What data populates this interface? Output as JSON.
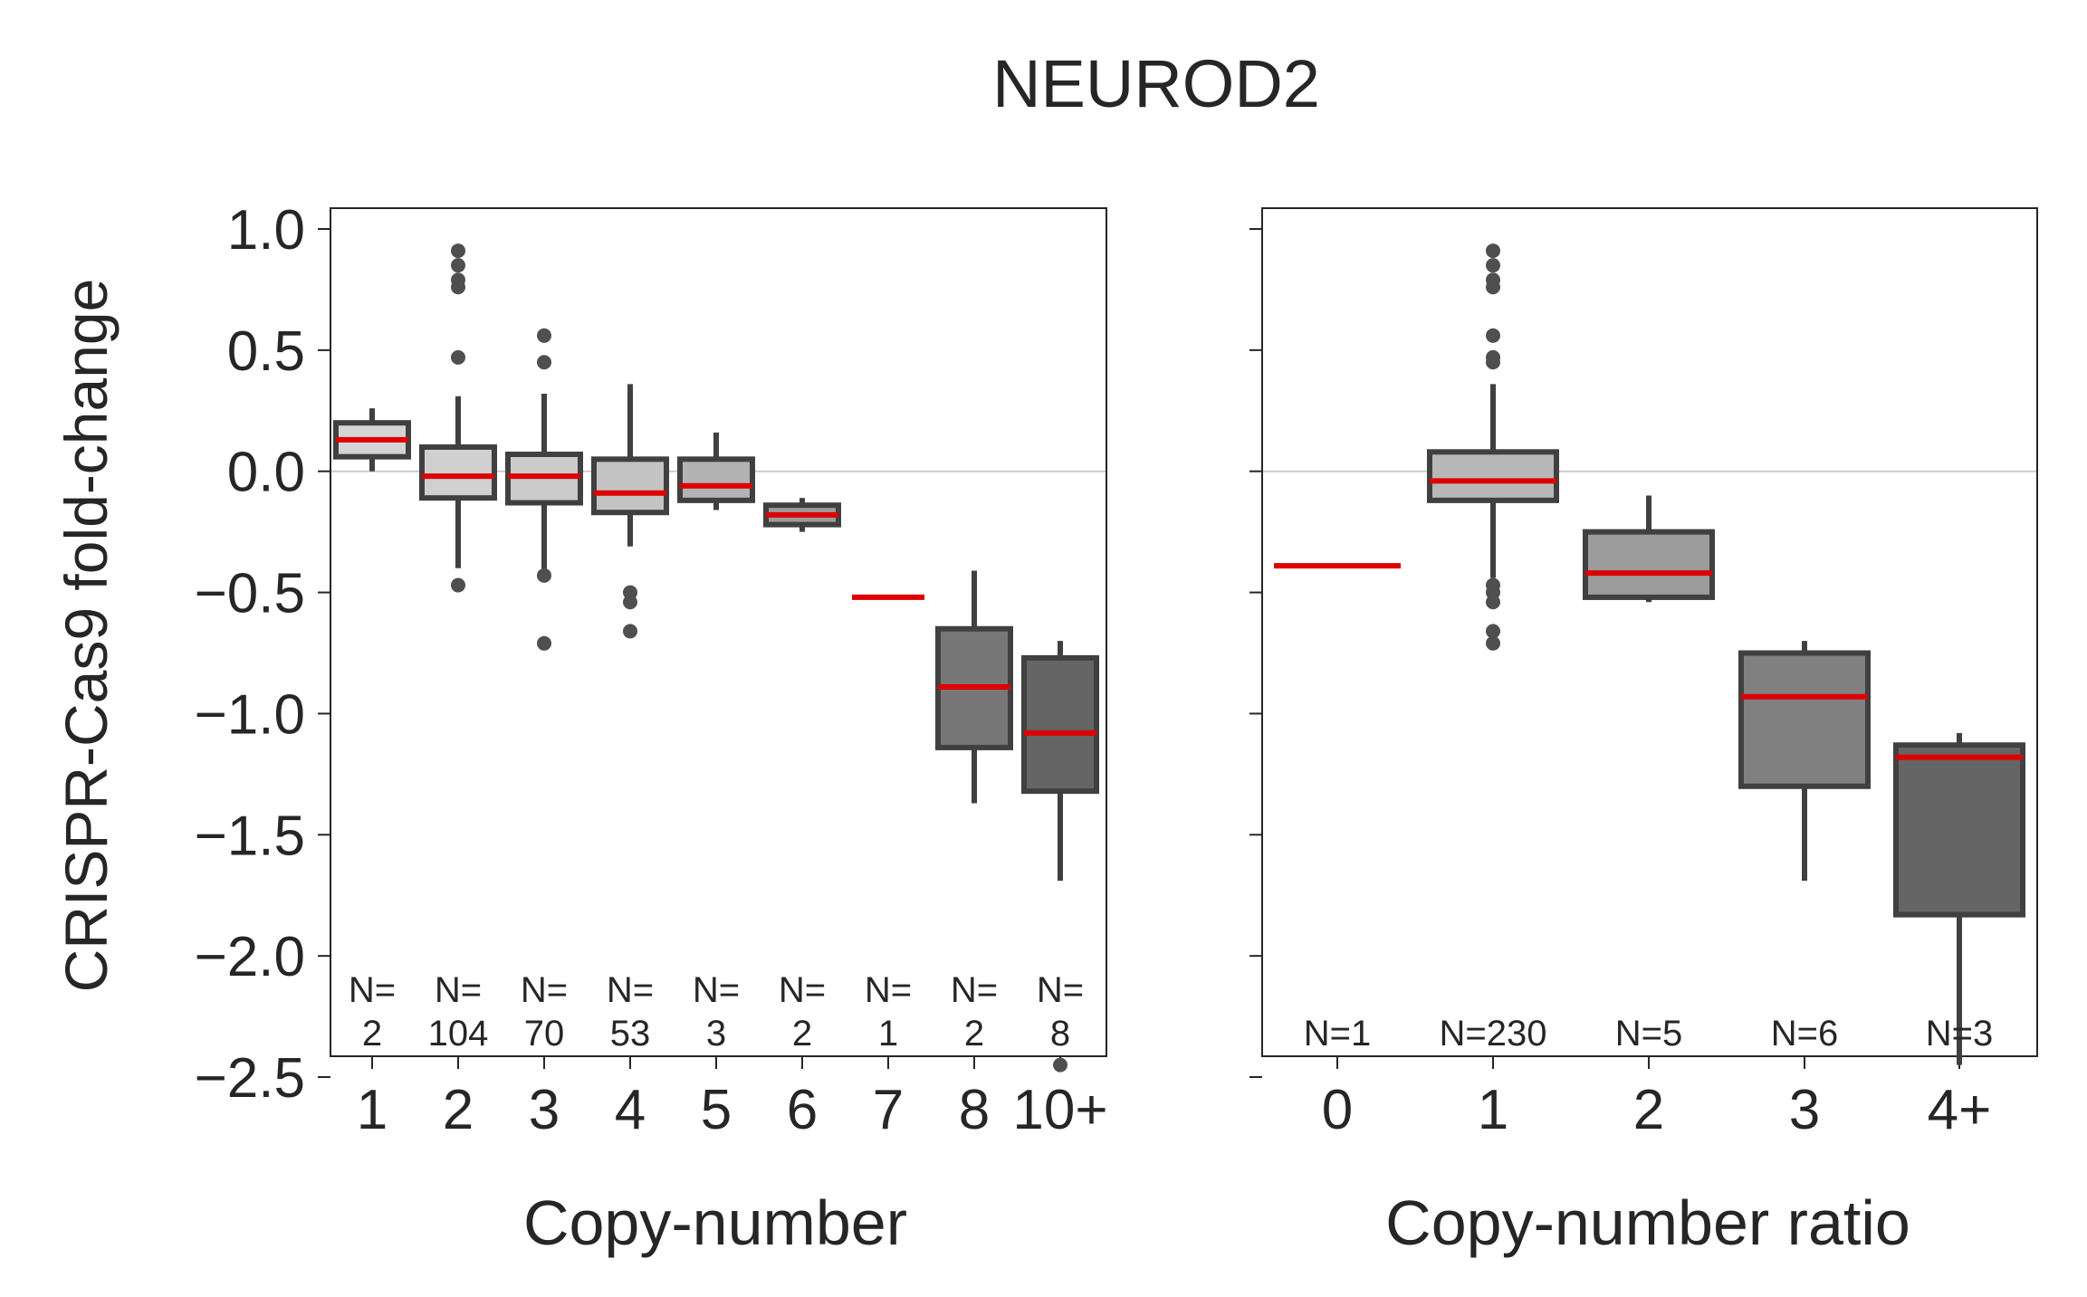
{
  "title": "NEUROD2",
  "colors": {
    "median": "#dd0000",
    "box_edge": "#404040",
    "zero_line": "#cccccc",
    "axis": "#262626",
    "outlier": "#4f4f4f"
  },
  "chart_data": [
    {
      "type": "box",
      "xlabel": "Copy-number",
      "ylabel": "CRISPR-Cas9 fold-change",
      "ylim": [
        -2.5,
        1.0
      ],
      "yticks": [
        1.0,
        0.5,
        0.0,
        -0.5,
        -1.0,
        -1.5,
        -2.0,
        -2.5
      ],
      "ytick_labels": [
        "1.0",
        "0.5",
        "0.0",
        "−0.5",
        "−1.0",
        "−1.5",
        "−2.0",
        "−2.5"
      ],
      "zero_line": true,
      "categories": [
        "1",
        "2",
        "3",
        "4",
        "5",
        "6",
        "7",
        "8",
        "10+"
      ],
      "n_labels": [
        {
          "top": "N=",
          "bottom": "2"
        },
        {
          "top": "N=",
          "bottom": "104"
        },
        {
          "top": "N=",
          "bottom": "70"
        },
        {
          "top": "N=",
          "bottom": "53"
        },
        {
          "top": "N=",
          "bottom": "3"
        },
        {
          "top": "N=",
          "bottom": "2"
        },
        {
          "top": "N=",
          "bottom": "1"
        },
        {
          "top": "N=",
          "bottom": "2"
        },
        {
          "top": "N=",
          "bottom": "8"
        }
      ],
      "boxes": [
        {
          "q1": 0.06,
          "median": 0.13,
          "q3": 0.2,
          "whisker_low": 0.0,
          "whisker_high": 0.26,
          "outliers": [],
          "fill": "#d4d4d4"
        },
        {
          "q1": -0.11,
          "median": -0.02,
          "q3": 0.1,
          "whisker_low": -0.4,
          "whisker_high": 0.31,
          "outliers": [
            0.91,
            0.85,
            0.79,
            0.76,
            0.47,
            -0.47
          ],
          "fill": "#d0d0d0"
        },
        {
          "q1": -0.13,
          "median": -0.02,
          "q3": 0.07,
          "whisker_low": -0.41,
          "whisker_high": 0.32,
          "outliers": [
            0.56,
            0.45,
            -0.43,
            -0.71
          ],
          "fill": "#cbcbcb"
        },
        {
          "q1": -0.17,
          "median": -0.09,
          "q3": 0.05,
          "whisker_low": -0.31,
          "whisker_high": 0.36,
          "outliers": [
            -0.5,
            -0.54,
            -0.66
          ],
          "fill": "#c3c3c3"
        },
        {
          "q1": -0.12,
          "median": -0.06,
          "q3": 0.05,
          "whisker_low": -0.16,
          "whisker_high": 0.16,
          "outliers": [],
          "fill": "#b3b3b3"
        },
        {
          "q1": -0.22,
          "median": -0.18,
          "q3": -0.14,
          "whisker_low": -0.25,
          "whisker_high": -0.11,
          "outliers": [],
          "fill": "#9c9c9c"
        },
        {
          "q1": -0.52,
          "median": -0.52,
          "q3": -0.52,
          "whisker_low": -0.52,
          "whisker_high": -0.52,
          "outliers": [],
          "fill": "#8a8a8a",
          "single": true
        },
        {
          "q1": -1.14,
          "median": -0.89,
          "q3": -0.65,
          "whisker_low": -1.37,
          "whisker_high": -0.41,
          "outliers": [],
          "fill": "#777777"
        },
        {
          "q1": -1.32,
          "median": -1.08,
          "q3": -0.77,
          "whisker_low": -1.69,
          "whisker_high": -0.7,
          "outliers": [
            -2.45
          ],
          "fill": "#656565"
        }
      ]
    },
    {
      "type": "box",
      "xlabel": "Copy-number ratio",
      "ylabel": "",
      "ylim": [
        -2.5,
        1.0
      ],
      "yticks": [
        1.0,
        0.5,
        0.0,
        -0.5,
        -1.0,
        -1.5,
        -2.0,
        -2.5
      ],
      "zero_line": true,
      "categories": [
        "0",
        "1",
        "2",
        "3",
        "4+"
      ],
      "n_labels": [
        "N=1",
        "N=230",
        "N=5",
        "N=6",
        "N=3"
      ],
      "boxes": [
        {
          "q1": -0.39,
          "median": -0.39,
          "q3": -0.39,
          "whisker_low": -0.39,
          "whisker_high": -0.39,
          "outliers": [],
          "fill": "#d4d4d4",
          "single": true
        },
        {
          "q1": -0.12,
          "median": -0.04,
          "q3": 0.08,
          "whisker_low": -0.44,
          "whisker_high": 0.36,
          "outliers": [
            0.91,
            0.85,
            0.79,
            0.76,
            0.56,
            0.47,
            0.45,
            -0.47,
            -0.5,
            -0.54,
            -0.66,
            -0.71
          ],
          "fill": "#b8b8b8"
        },
        {
          "q1": -0.52,
          "median": -0.42,
          "q3": -0.25,
          "whisker_low": -0.54,
          "whisker_high": -0.1,
          "outliers": [],
          "fill": "#9b9b9b"
        },
        {
          "q1": -1.3,
          "median": -0.93,
          "q3": -0.75,
          "whisker_low": -1.69,
          "whisker_high": -0.7,
          "outliers": [],
          "fill": "#808080"
        },
        {
          "q1": -1.83,
          "median": -1.18,
          "q3": -1.13,
          "whisker_low": -2.45,
          "whisker_high": -1.08,
          "outliers": [],
          "fill": "#656565"
        }
      ]
    }
  ]
}
